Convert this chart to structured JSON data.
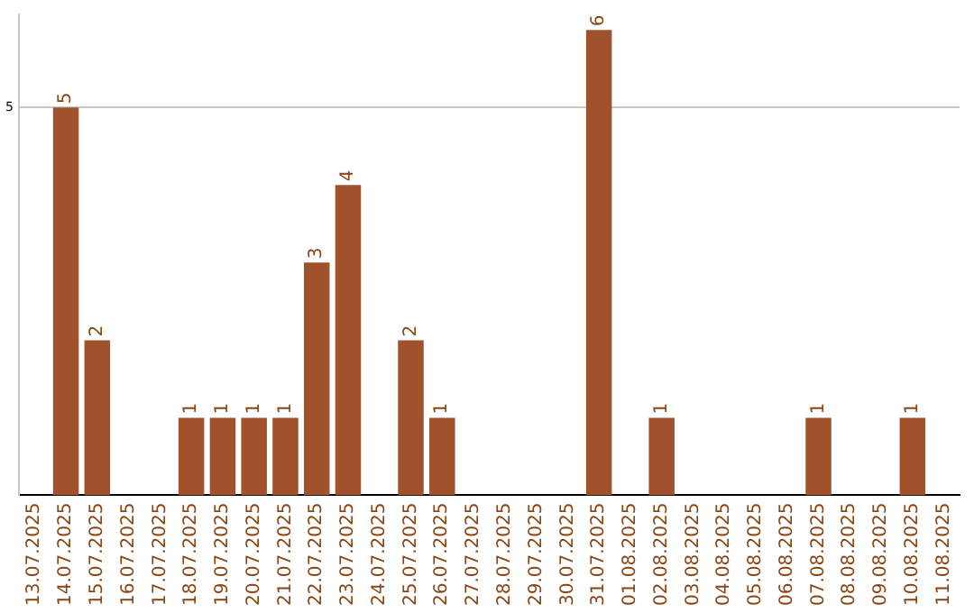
{
  "chart_data": {
    "type": "bar",
    "categories": [
      "13.07.2025",
      "14.07.2025",
      "15.07.2025",
      "16.07.2025",
      "17.07.2025",
      "18.07.2025",
      "19.07.2025",
      "20.07.2025",
      "21.07.2025",
      "22.07.2025",
      "23.07.2025",
      "24.07.2025",
      "25.07.2025",
      "26.07.2025",
      "27.07.2025",
      "28.07.2025",
      "29.07.2025",
      "30.07.2025",
      "31.07.2025",
      "01.08.2025",
      "02.08.2025",
      "03.08.2025",
      "04.08.2025",
      "05.08.2025",
      "06.08.2025",
      "07.08.2025",
      "08.08.2025",
      "09.08.2025",
      "10.08.2025",
      "11.08.2025"
    ],
    "values": [
      0,
      5,
      2,
      0,
      0,
      1,
      1,
      1,
      1,
      3,
      4,
      0,
      2,
      1,
      0,
      0,
      0,
      0,
      6,
      0,
      1,
      0,
      0,
      0,
      0,
      1,
      0,
      0,
      1,
      0
    ],
    "value_labels": [
      null,
      "5",
      "2",
      null,
      null,
      "1",
      "1",
      "1",
      "1",
      "3",
      "4",
      null,
      "2",
      "1",
      null,
      null,
      null,
      null,
      "6",
      null,
      "1",
      null,
      null,
      null,
      null,
      "1",
      null,
      null,
      "1",
      null
    ],
    "color": "#a0522d",
    "ylim": [
      0,
      6.2
    ],
    "yticks": [
      5
    ],
    "grid": "y",
    "legend": false
  }
}
